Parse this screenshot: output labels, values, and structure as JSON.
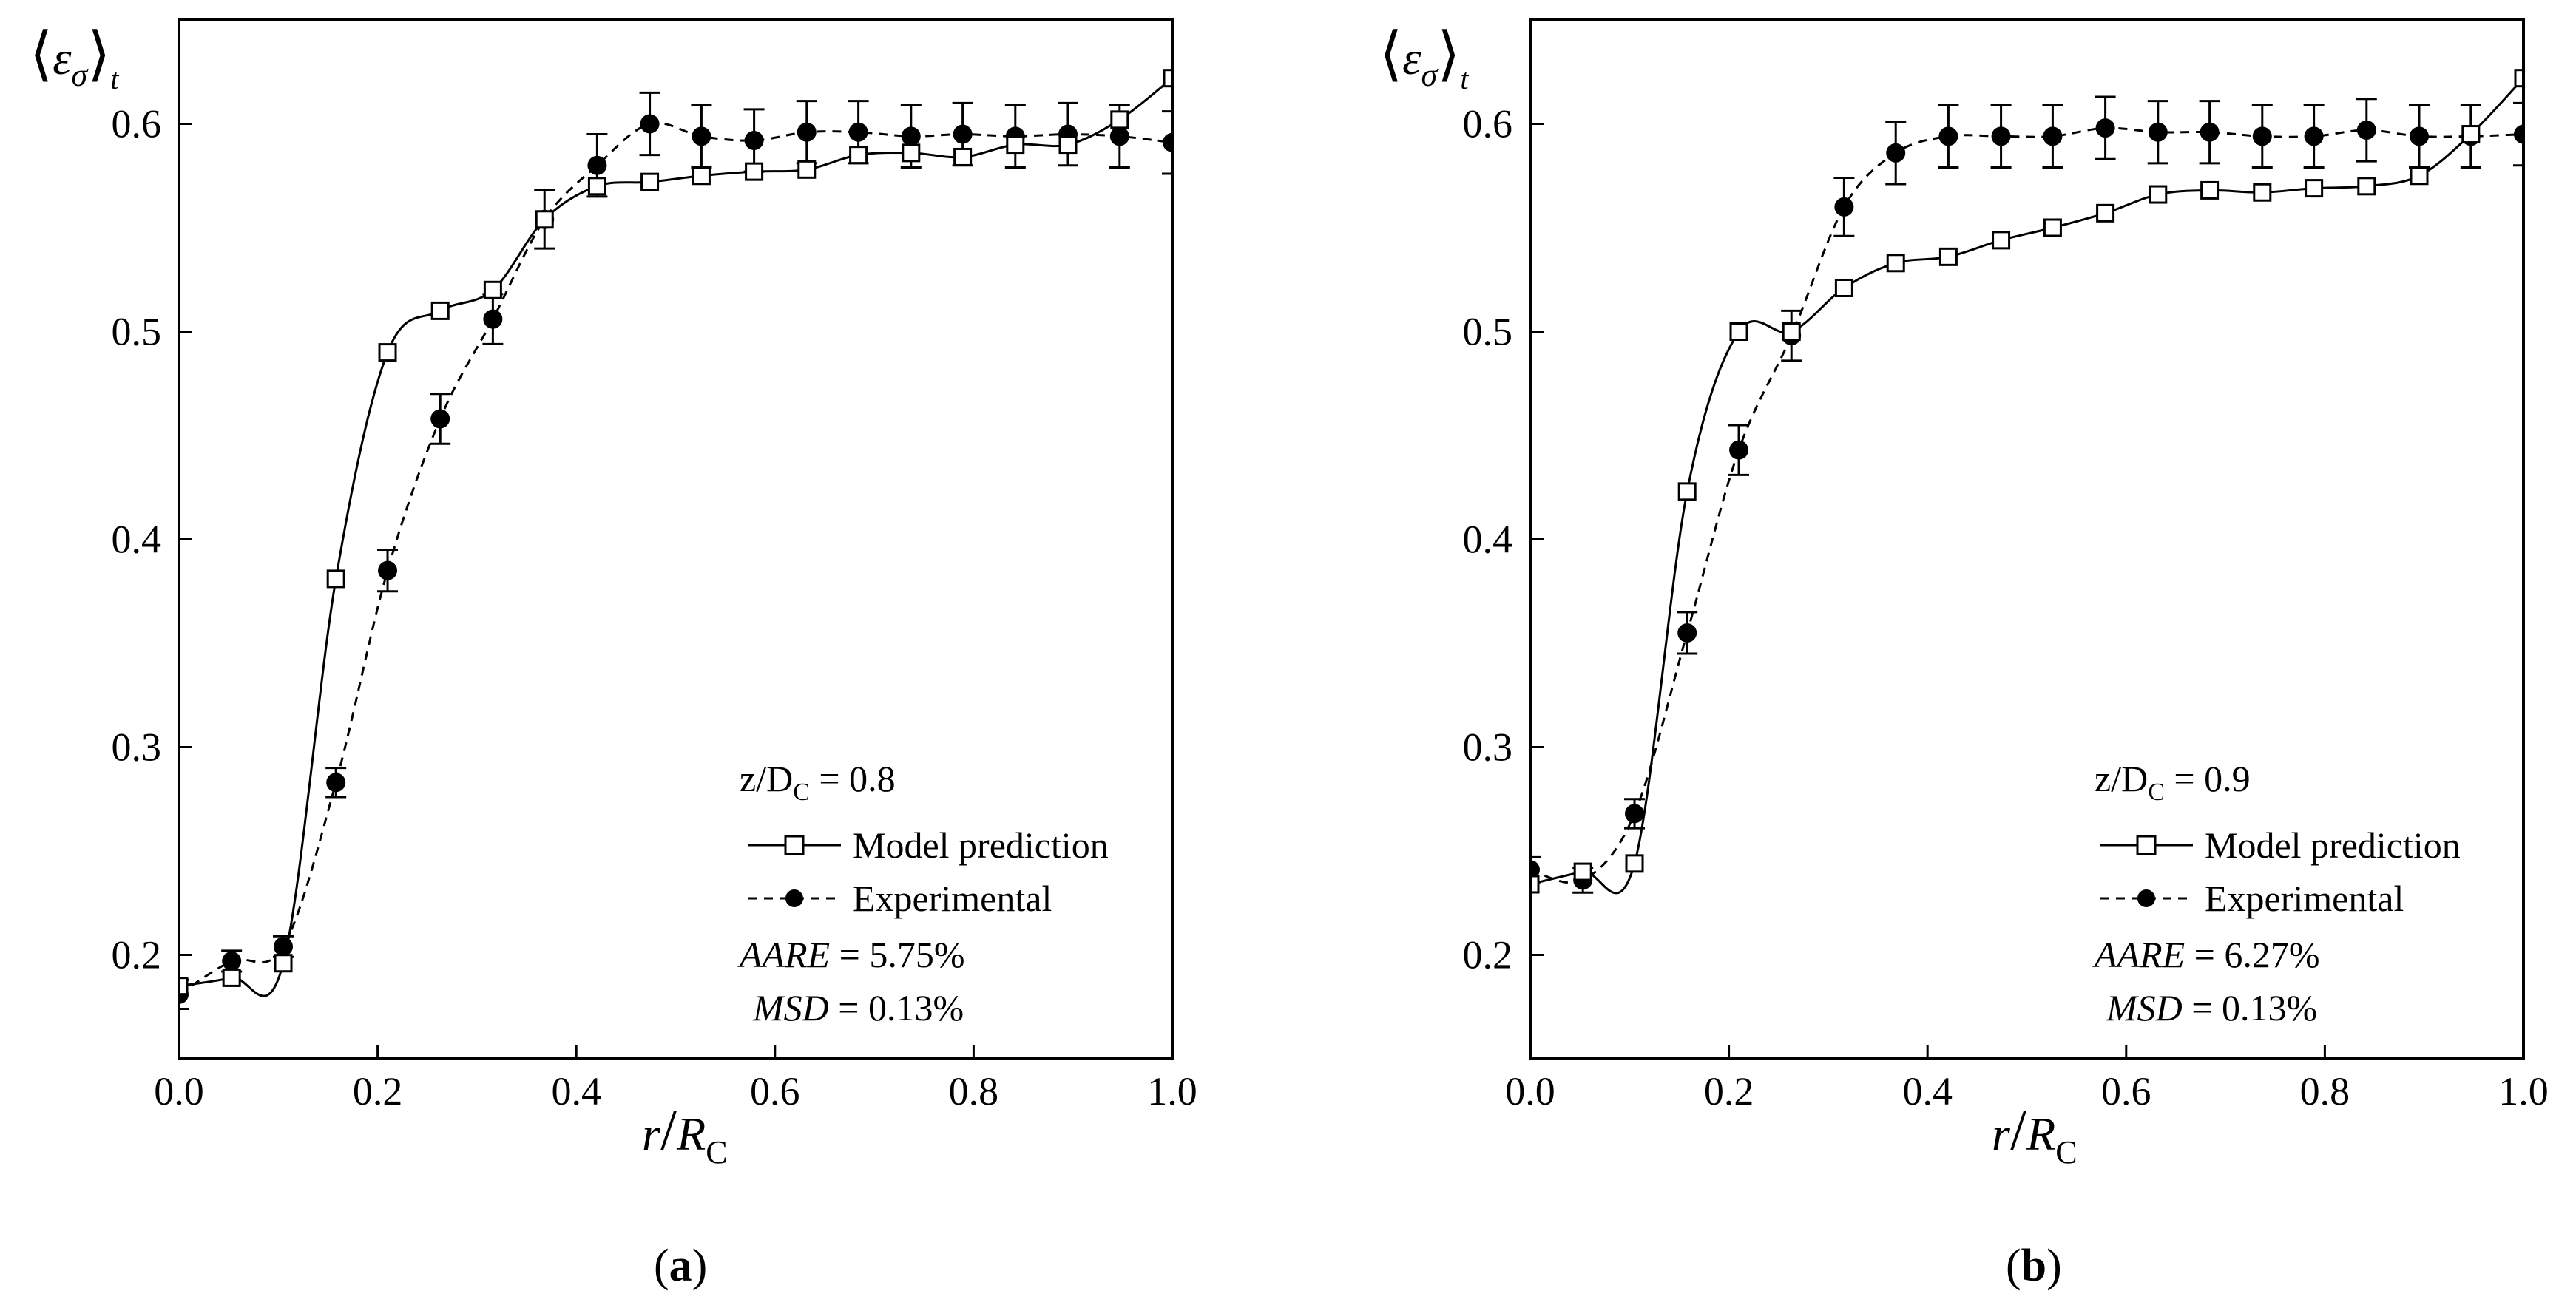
{
  "chart_data": [
    {
      "type": "line",
      "caption_letter": "a",
      "ylabel_main": "ε",
      "ylabel_sub": "σ",
      "ylabel_outer_sub": "t",
      "xlabel_main": "r",
      "xlabel_den": "R",
      "xlabel_den_sub": "C",
      "xlim": [
        0,
        1.0
      ],
      "ylim": [
        0.15,
        0.65
      ],
      "xticks": [
        "0.0",
        "0.2",
        "0.4",
        "0.6",
        "0.8",
        "1.0"
      ],
      "yticks": [
        "0.2",
        "0.3",
        "0.4",
        "0.5",
        "0.6"
      ],
      "condition_prefix": "z/D",
      "condition_sub": "C",
      "condition_value": " = 0.8",
      "aare_label": "AARE",
      "aare_value": " = 5.75%",
      "msd_label": "MSD",
      "msd_value": " = 0.13%",
      "series": [
        {
          "name": "Model prediction",
          "style": "solid-open-square",
          "x": [
            0.0,
            0.053,
            0.105,
            0.158,
            0.21,
            0.263,
            0.316,
            0.368,
            0.421,
            0.474,
            0.526,
            0.579,
            0.632,
            0.684,
            0.737,
            0.789,
            0.842,
            0.895,
            0.947,
            1.0
          ],
          "y": [
            0.185,
            0.189,
            0.196,
            0.381,
            0.49,
            0.51,
            0.52,
            0.554,
            0.57,
            0.572,
            0.575,
            0.577,
            0.578,
            0.585,
            0.586,
            0.584,
            0.59,
            0.59,
            0.602,
            0.622
          ]
        },
        {
          "name": "Experimental",
          "style": "dashed-filled-circle",
          "x": [
            0.0,
            0.053,
            0.105,
            0.158,
            0.21,
            0.263,
            0.316,
            0.368,
            0.421,
            0.474,
            0.526,
            0.579,
            0.632,
            0.684,
            0.737,
            0.789,
            0.842,
            0.895,
            0.947,
            1.0
          ],
          "y": [
            0.181,
            0.197,
            0.204,
            0.283,
            0.385,
            0.458,
            0.506,
            0.554,
            0.58,
            0.6,
            0.594,
            0.592,
            0.596,
            0.596,
            0.594,
            0.595,
            0.594,
            0.595,
            0.594,
            0.591
          ],
          "err": [
            0.007,
            0.005,
            0.005,
            0.007,
            0.01,
            0.012,
            0.012,
            0.014,
            0.015,
            0.015,
            0.015,
            0.015,
            0.015,
            0.015,
            0.015,
            0.015,
            0.015,
            0.015,
            0.015,
            0.015
          ]
        }
      ]
    },
    {
      "type": "line",
      "caption_letter": "b",
      "ylabel_main": "ε",
      "ylabel_sub": "σ",
      "ylabel_outer_sub": "t",
      "xlabel_main": "r",
      "xlabel_den": "R",
      "xlabel_den_sub": "C",
      "xlim": [
        0,
        1.0
      ],
      "ylim": [
        0.15,
        0.65
      ],
      "xticks": [
        "0.0",
        "0.2",
        "0.4",
        "0.6",
        "0.8",
        "1.0"
      ],
      "yticks": [
        "0.2",
        "0.3",
        "0.4",
        "0.5",
        "0.6"
      ],
      "condition_prefix": "z/D",
      "condition_sub": "C",
      "condition_value": " = 0.9",
      "aare_label": "AARE",
      "aare_value": " = 6.27%",
      "msd_label": "MSD",
      "msd_value": " = 0.13%",
      "series": [
        {
          "name": "Model prediction",
          "style": "solid-open-square",
          "x": [
            0.0,
            0.053,
            0.105,
            0.158,
            0.21,
            0.263,
            0.316,
            0.368,
            0.421,
            0.474,
            0.526,
            0.579,
            0.632,
            0.684,
            0.737,
            0.789,
            0.842,
            0.895,
            0.947,
            1.0
          ],
          "y": [
            0.234,
            0.24,
            0.244,
            0.423,
            0.5,
            0.5,
            0.521,
            0.533,
            0.536,
            0.544,
            0.55,
            0.557,
            0.566,
            0.568,
            0.567,
            0.569,
            0.57,
            0.575,
            0.595,
            0.622
          ]
        },
        {
          "name": "Experimental",
          "style": "dashed-filled-circle",
          "x": [
            0.0,
            0.053,
            0.105,
            0.158,
            0.21,
            0.263,
            0.316,
            0.368,
            0.421,
            0.474,
            0.526,
            0.579,
            0.632,
            0.684,
            0.737,
            0.789,
            0.842,
            0.895,
            0.947,
            1.0
          ],
          "y": [
            0.241,
            0.236,
            0.268,
            0.355,
            0.443,
            0.498,
            0.56,
            0.586,
            0.594,
            0.594,
            0.594,
            0.598,
            0.596,
            0.596,
            0.594,
            0.594,
            0.597,
            0.594,
            0.594,
            0.595
          ],
          "err": [
            0.006,
            0.006,
            0.007,
            0.01,
            0.012,
            0.012,
            0.014,
            0.015,
            0.015,
            0.015,
            0.015,
            0.015,
            0.015,
            0.015,
            0.015,
            0.015,
            0.015,
            0.015,
            0.015,
            0.015
          ]
        }
      ]
    }
  ]
}
